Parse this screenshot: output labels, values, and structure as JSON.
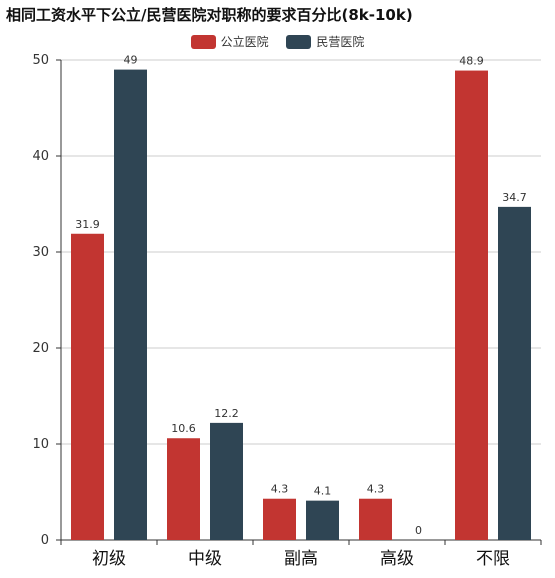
{
  "chart_data": {
    "type": "bar",
    "title": "相同工资水平下公立/民营医院对职称的要求百分比(8k-10k)",
    "categories": [
      "初级",
      "中级",
      "副高",
      "高级",
      "不限"
    ],
    "series": [
      {
        "name": "公立医院",
        "color": "#c23531",
        "values": [
          31.9,
          10.6,
          4.3,
          4.3,
          48.9
        ]
      },
      {
        "name": "民营医院",
        "color": "#2f4554",
        "values": [
          49,
          12.2,
          4.1,
          0,
          34.7
        ]
      }
    ],
    "ylim": [
      0,
      50
    ],
    "yticks": [
      0,
      10,
      20,
      30,
      40,
      50
    ],
    "grid": true,
    "legend_position": "top-center"
  }
}
